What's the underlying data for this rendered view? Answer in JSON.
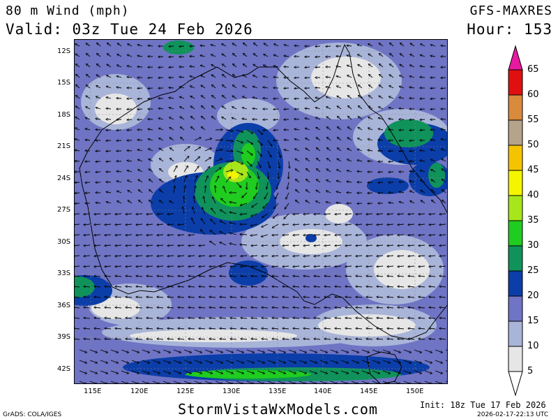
{
  "header": {
    "title": "80 m Wind (mph)",
    "valid": "Valid: 03z Tue 24 Feb 2026",
    "model": "GFS-MAXRES",
    "hour": "Hour: 153"
  },
  "map": {
    "lat_labels": [
      "12S",
      "15S",
      "18S",
      "21S",
      "24S",
      "27S",
      "30S",
      "33S",
      "36S",
      "39S",
      "42S"
    ],
    "lon_labels": [
      "115E",
      "120E",
      "125E",
      "130E",
      "135E",
      "140E",
      "145E",
      "150E"
    ]
  },
  "colorbar": {
    "levels": [
      "65",
      "60",
      "55",
      "50",
      "45",
      "40",
      "35",
      "30",
      "25",
      "20",
      "15",
      "10",
      "5"
    ],
    "colors": {
      "c5": "#e6e6e6",
      "c10": "#a9b4d9",
      "c15": "#6f74c4",
      "c20": "#0b3ea8",
      "c25": "#10925b",
      "c30": "#1fcc1f",
      "c35": "#a6e61a",
      "c40": "#f5f500",
      "c45": "#f5c400",
      "c50": "#b5a38a",
      "c55": "#d98a3c",
      "c60": "#e01010",
      "c65": "#e61aa0"
    }
  },
  "footer": {
    "grads": "GrADS: COLA/IGES",
    "site": "StormVistaWxModels.com",
    "init": "Init: 18z Tue 17 Feb 2026",
    "timestamp": "2026-02-17-22:13 UTC"
  }
}
